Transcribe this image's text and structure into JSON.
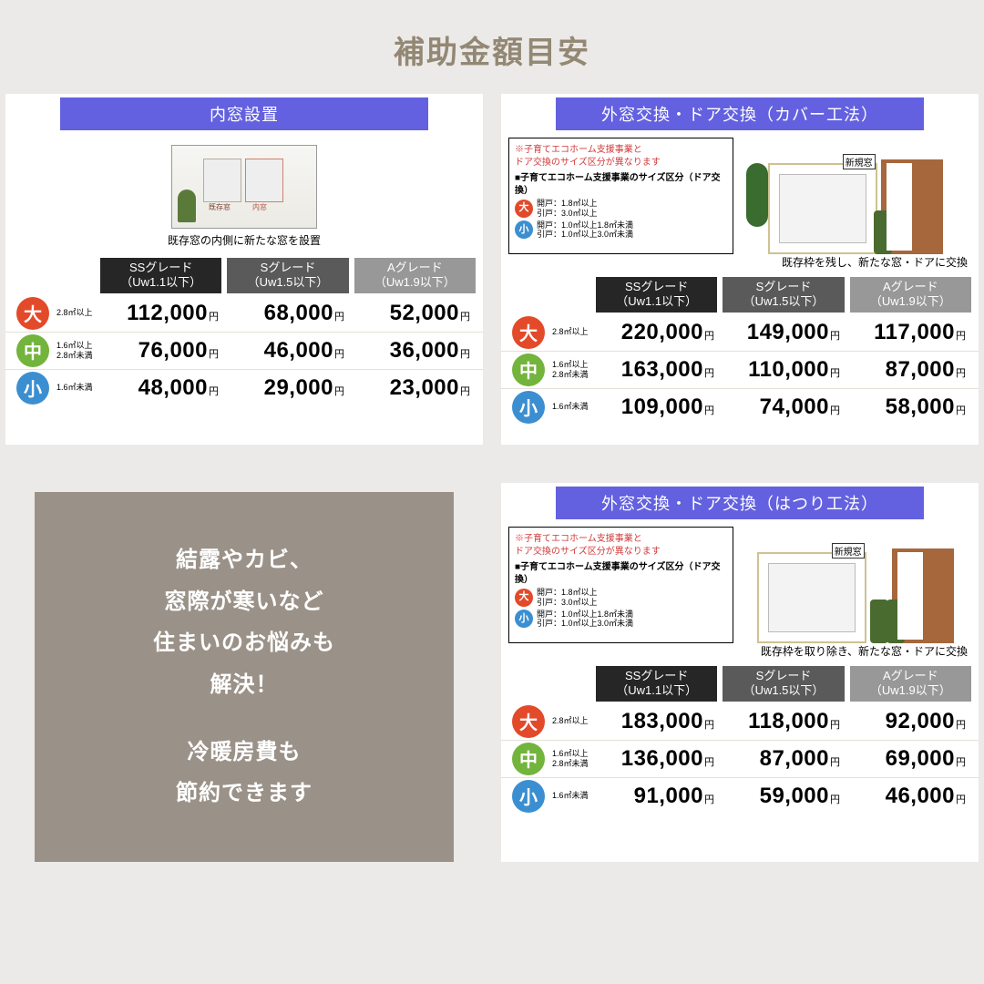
{
  "title": "補助金額目安",
  "colors": {
    "header_bg": "#6361df",
    "badge_large": "#e24a2a",
    "badge_medium": "#72b43c",
    "badge_small": "#3b8fd1",
    "grade_ss_bg": "#262626",
    "grade_s_bg": "#5a5a5a",
    "grade_a_bg": "#989898",
    "promo_bg": "#9a9188",
    "title_color": "#938874"
  },
  "grades": [
    {
      "label_line1": "SSグレード",
      "label_line2": "（Uw1.1以下）"
    },
    {
      "label_line1": "Sグレード",
      "label_line2": "（Uw1.5以下）"
    },
    {
      "label_line1": "Aグレード",
      "label_line2": "（Uw1.9以下）"
    }
  ],
  "size_meta": {
    "labels": {
      "large": "大",
      "medium": "中",
      "small": "小"
    },
    "notes": {
      "large": "2.8㎡以上",
      "medium": "1.6㎡以上\n2.8㎡未満",
      "small": "1.6㎡未満"
    }
  },
  "yen": "円",
  "cards": {
    "inner_window": {
      "title": "内窓設置",
      "caption": "既存窓の内側に新たな窓を設置",
      "tag1": "既存窓",
      "tag2": "内窓",
      "rows": [
        {
          "key": "large",
          "prices": [
            "112,000",
            "68,000",
            "52,000"
          ]
        },
        {
          "key": "medium",
          "prices": [
            "76,000",
            "46,000",
            "36,000"
          ]
        },
        {
          "key": "small",
          "prices": [
            "48,000",
            "29,000",
            "23,000"
          ]
        }
      ]
    },
    "outer_cover": {
      "title": "外窓交換・ドア交換（カバー工法）",
      "caption": "既存枠を残し、新たな窓・ドアに交換",
      "window_tag": "新規窓",
      "note": {
        "warn": "※子育てエコホーム支援事業と\nドア交換のサイズ区分が異なります",
        "sub": "■子育てエコホーム支援事業のサイズ区分（ドア交換）",
        "lines": [
          {
            "badge": "large",
            "text": "開戸：1.8㎡以上\n引戸：3.0㎡以上"
          },
          {
            "badge": "small",
            "text": "開戸：1.0㎡以上1.8㎡未満\n引戸：1.0㎡以上3.0㎡未満"
          }
        ]
      },
      "rows": [
        {
          "key": "large",
          "prices": [
            "220,000",
            "149,000",
            "117,000"
          ]
        },
        {
          "key": "medium",
          "prices": [
            "163,000",
            "110,000",
            "87,000"
          ]
        },
        {
          "key": "small",
          "prices": [
            "109,000",
            "74,000",
            "58,000"
          ]
        }
      ]
    },
    "outer_full": {
      "title": "外窓交換・ドア交換（はつり工法）",
      "caption": "既存枠を取り除き、新たな窓・ドアに交換",
      "window_tag": "新規窓",
      "note": {
        "warn": "※子育てエコホーム支援事業と\nドア交換のサイズ区分が異なります",
        "sub": "■子育てエコホーム支援事業のサイズ区分（ドア交換）",
        "lines": [
          {
            "badge": "large",
            "text": "開戸：1.8㎡以上\n引戸：3.0㎡以上"
          },
          {
            "badge": "small",
            "text": "開戸：1.0㎡以上1.8㎡未満\n引戸：1.0㎡以上3.0㎡未満"
          }
        ]
      },
      "rows": [
        {
          "key": "large",
          "prices": [
            "183,000",
            "118,000",
            "92,000"
          ]
        },
        {
          "key": "medium",
          "prices": [
            "136,000",
            "87,000",
            "69,000"
          ]
        },
        {
          "key": "small",
          "prices": [
            "91,000",
            "59,000",
            "46,000"
          ]
        }
      ]
    }
  },
  "promo": {
    "l1": "結露やカビ、",
    "l2": "窓際が寒いなど",
    "l3": "住まいのお悩みも",
    "l4": "解決！",
    "l5": "冷暖房費も",
    "l6": "節約できます"
  }
}
